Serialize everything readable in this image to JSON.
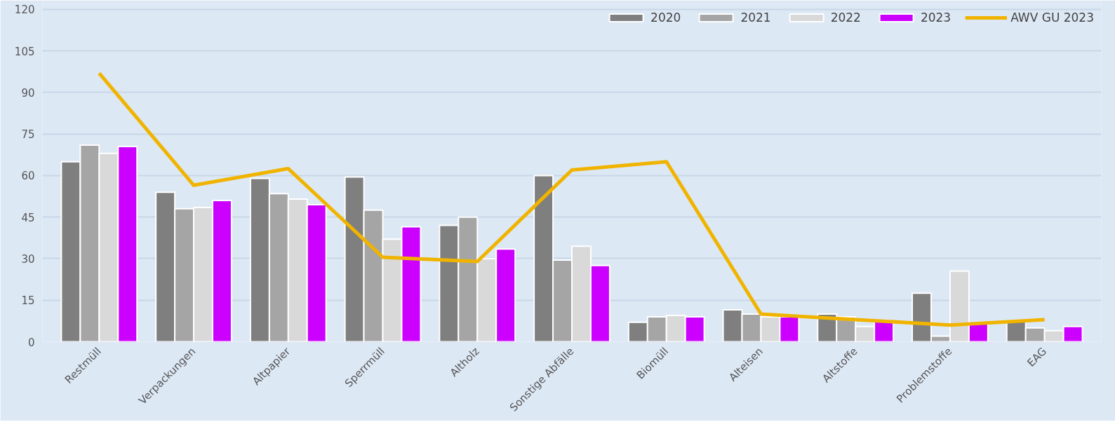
{
  "chart_data": {
    "type": "bar",
    "categories": [
      "Restmüll",
      "Verpackungen",
      "Altpapier",
      "Sperrmüll",
      "Altholz",
      "Sonstige Abfälle",
      "Biomüll",
      "Alteisen",
      "Altstoffe",
      "Problemstoffe",
      "EAG"
    ],
    "series": [
      {
        "name": "2020",
        "color": "#7f7f7f",
        "values": [
          65,
          54,
          59,
          59.5,
          42,
          60,
          7,
          11.5,
          10,
          17.5,
          7.5
        ]
      },
      {
        "name": "2021",
        "color": "#a5a5a5",
        "values": [
          71,
          48,
          53.5,
          47.5,
          45,
          29.5,
          9,
          10,
          9,
          2,
          5
        ]
      },
      {
        "name": "2022",
        "color": "#d9d9d9",
        "values": [
          68,
          48.5,
          51.5,
          37,
          30,
          34.5,
          9.5,
          9,
          5.5,
          25.5,
          4
        ]
      },
      {
        "name": "2023",
        "color": "#cc00ff",
        "values": [
          70.5,
          51,
          49.5,
          41.5,
          33.5,
          27.5,
          9,
          9,
          7.5,
          6.5,
          5.5
        ]
      },
      {
        "name": "AWV GU 2023",
        "type": "line",
        "color": "#f0b400",
        "values": [
          97,
          56.5,
          62.5,
          30.5,
          29,
          62,
          65,
          10,
          8,
          6,
          8
        ]
      }
    ],
    "ylim": [
      0,
      122
    ],
    "yticks": [
      0,
      15,
      30,
      45,
      60,
      75,
      90,
      105,
      120
    ],
    "grid": "y",
    "legend": "top right"
  }
}
